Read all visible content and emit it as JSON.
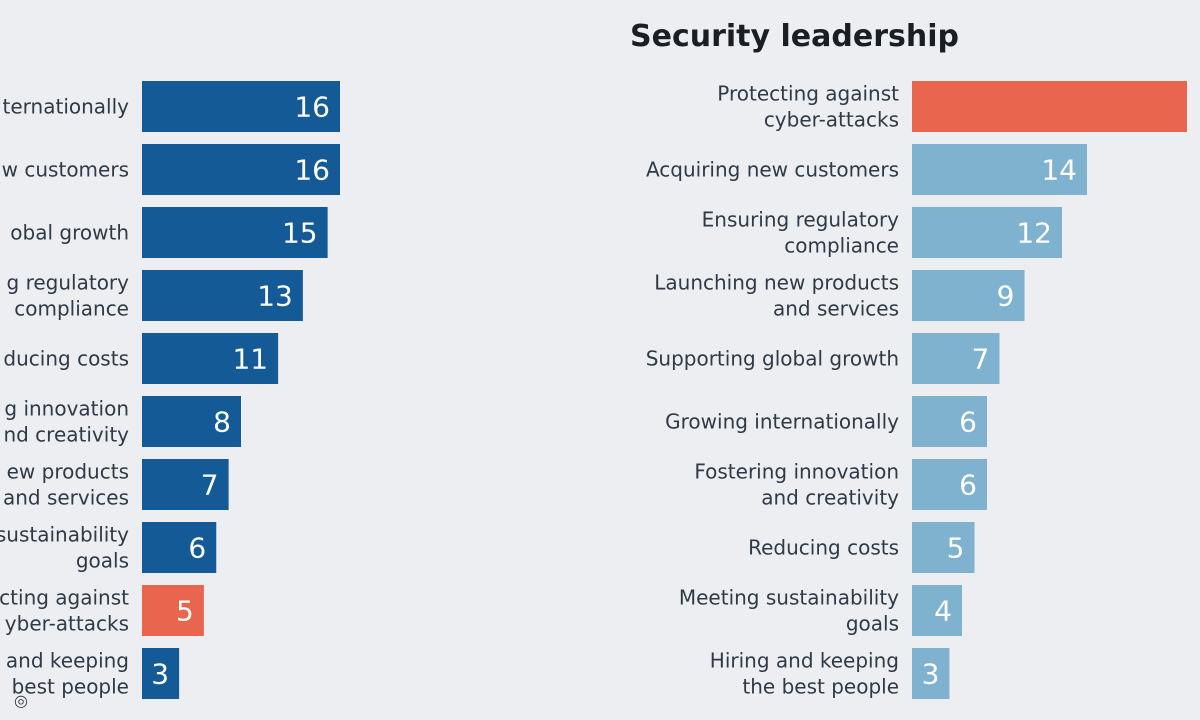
{
  "chart_data": [
    {
      "type": "bar",
      "orientation": "horizontal",
      "title": "",
      "xlabel": "",
      "ylabel": "",
      "xlim": [
        0,
        22
      ],
      "grid": false,
      "legend": "none",
      "colors": {
        "default": "#145a96",
        "highlight": "#e8664d"
      },
      "highlight_index": 8,
      "categories": [
        "ternationally",
        "w customers",
        "obal growth",
        "g regulatory\ncompliance",
        "ducing costs",
        "g innovation\nnd creativity",
        "ew products\nand services",
        "sustainability\ngoals",
        "cting against\nyber-attacks",
        "and keeping\nbest people"
      ],
      "values": [
        16,
        16,
        15,
        13,
        11,
        8,
        7,
        6,
        5,
        3
      ]
    },
    {
      "type": "bar",
      "orientation": "horizontal",
      "title": "Security leadership",
      "xlabel": "",
      "ylabel": "",
      "xlim": [
        0,
        22
      ],
      "grid": false,
      "legend": "none",
      "colors": {
        "default": "#7fb2ce",
        "highlight": "#e8664d"
      },
      "highlight_index": 0,
      "categories": [
        "Protecting against\ncyber-attacks",
        "Acquiring new customers",
        "Ensuring regulatory\ncompliance",
        "Launching new products\nand services",
        "Supporting global growth",
        "Growing internationally",
        "Fostering innovation\nand creativity",
        "Reducing costs",
        "Meeting sustainability\ngoals",
        "Hiring and keeping\nthe best people"
      ],
      "values": [
        22,
        14,
        12,
        9,
        7,
        6,
        6,
        5,
        4,
        3
      ],
      "value_labels": [
        "",
        "14",
        "12",
        "9",
        "7",
        "6",
        "6",
        "5",
        "4",
        "3"
      ]
    }
  ],
  "ui": {
    "corner_icon": "circle-target-icon",
    "corner_glyph": "◎"
  }
}
